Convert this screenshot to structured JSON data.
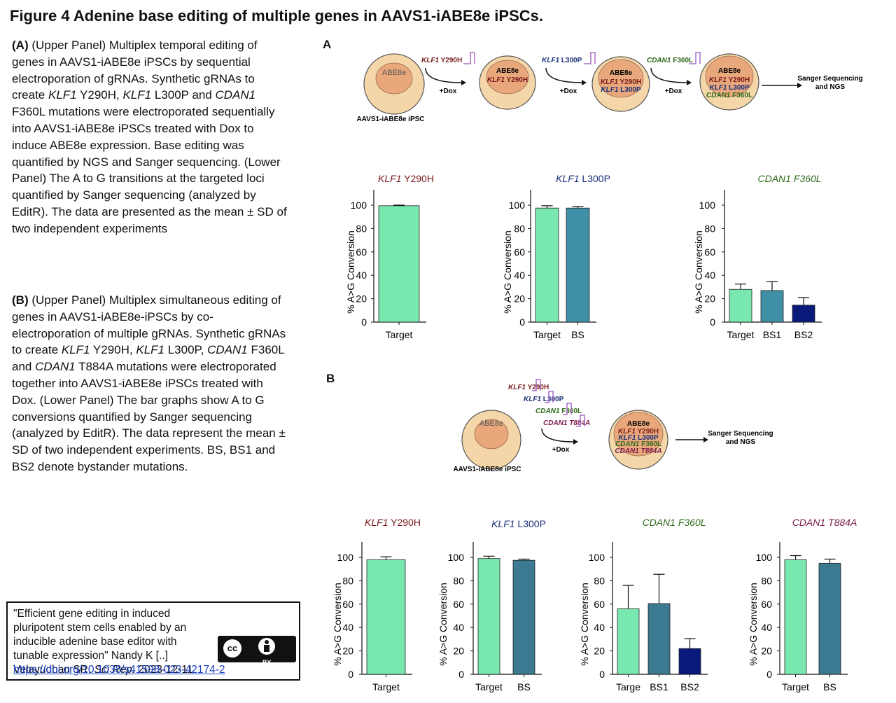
{
  "figure": {
    "title": "Figure 4 Adenine base editing of multiple genes in AAVS1-iABE8e iPSCs."
  },
  "caption_a": {
    "label": "(A)",
    "text": " (Upper Panel) Multiplex temporal editing of genes in AAVS1-iABE8e iPSCs by sequential electroporation of gRNAs. Synthetic gRNAs to create KLF1 Y290H, KLF1 L300P and CDAN1 F360L mutations were electroporated sequentially into AAVS1-iABE8e iPSCs treated with Dox to induce ABE8e expression. Base editing was quantified by NGS and Sanger sequencing. (Lower Panel) The A to G transitions at the targeted loci quantified by Sanger sequencing (analyzed by EditR). The data are presented as the mean ± SD of two independent experiments"
  },
  "caption_b": {
    "label": "(B)",
    "text": " (Upper Panel) Multiplex simultaneous editing of genes in AAVS1-iABE8e-iPSCs by co-electroporation of multiple gRNAs. Synthetic gRNAs to create KLF1 Y290H, KLF1 L300P, CDAN1 F360L and CDAN1 T884A mutations were electroporated together into AAVS1-iABE8e iPSCs treated with Dox. (Lower Panel) The bar graphs show A to G conversions quantified by Sanger sequencing (analyzed by EditR). The data represent the mean ± SD of two independent experiments. BS, BS1 and BS2 denote bystander mutations."
  },
  "citation": {
    "text": "\"Efficient gene editing in induced pluripotent stem cells enabled by an inducible adenine base editor with tunable expression\" Nandy K [..] Velayudhan SR. Sci Rep. 2023-12-11.",
    "url": "https://doi.org/10.1038/s41598-023-42174-2",
    "license_icon": "cc-by-icon",
    "license_cc": "cc",
    "license_by": "BY"
  },
  "panel_a": {
    "label": "A",
    "cell_label": "ABE8e",
    "ipsc_label": "AAVS1-iABE8e iPSC",
    "dox_label": "+Dox",
    "sanger_label": "Sanger Sequencing\nand NGS",
    "guides": [
      "KLF1 Y290H",
      "KLF1 L300P",
      "CDAN1 F360L"
    ]
  },
  "panel_b": {
    "label": "B",
    "cell_label": "ABE8e",
    "ipsc_label": "AAVS1-iABE8e iPSC",
    "dox_label": "+Dox",
    "sanger_label": "Sanger Sequencing\nand NGS",
    "guides": [
      "KLF1 Y290H",
      "KLF1 L300P",
      "CDAN1 F360L",
      "CDAN1 T884A"
    ]
  },
  "colors": {
    "target": "#78e8b0",
    "bs": "#3f8fa6",
    "bs_dark": "#3b7a91",
    "bs2": "#0a1a7a",
    "klf1_y290h": "#7a1a1a",
    "klf1_l300p": "#1a2f7a",
    "cdan1_f360l": "#2e6b1a",
    "cdan1_t884a": "#7a1a4a",
    "cell_outer": "#f5d6a8",
    "cell_inner": "#e8a87c",
    "guide_line": "#a86bc8"
  },
  "chart_data": [
    {
      "id": "a1",
      "type": "bar",
      "title_gene": "KLF1",
      "title_mut": " Y290H",
      "title_color": "#7a1a1a",
      "ylabel": "% A>G Conversion",
      "ylim": [
        0,
        100
      ],
      "yticks": [
        0,
        20,
        40,
        60,
        80,
        100
      ],
      "categories": [
        "Target"
      ],
      "values": [
        99.5
      ],
      "errors": [
        0.5
      ],
      "colors": [
        "#78e8b0"
      ]
    },
    {
      "id": "a2",
      "type": "bar",
      "title_gene": "KLF1",
      "title_mut": " L300P",
      "title_color": "#1a2f7a",
      "ylabel": "% A>G Conversion",
      "ylim": [
        0,
        100
      ],
      "yticks": [
        0,
        20,
        40,
        60,
        80,
        100
      ],
      "categories": [
        "Target",
        "BS"
      ],
      "values": [
        97.5,
        97.5
      ],
      "errors": [
        2,
        1.5
      ],
      "colors": [
        "#78e8b0",
        "#3f8fa6"
      ]
    },
    {
      "id": "a3",
      "type": "bar",
      "title_gene": "CDAN1",
      "title_mut": " F360L",
      "title_color": "#2e6b1a",
      "title_all_italic": true,
      "ylabel": "% A>G Conversion",
      "ylim": [
        0,
        100
      ],
      "yticks": [
        0,
        20,
        40,
        60,
        80,
        100
      ],
      "categories": [
        "Target",
        "BS1",
        "BS2"
      ],
      "values": [
        28,
        27,
        14.5
      ],
      "errors": [
        4.5,
        7.5,
        6.5
      ],
      "colors": [
        "#78e8b0",
        "#3f8fa6",
        "#0a1a7a"
      ]
    },
    {
      "id": "b1",
      "type": "bar",
      "title_gene": "KLF1",
      "title_mut": " Y290H",
      "title_color": "#7a1a1a",
      "ylabel": "% A>G Conversion",
      "ylim": [
        0,
        100
      ],
      "yticks": [
        0,
        20,
        40,
        60,
        80,
        100
      ],
      "categories": [
        "Target"
      ],
      "values": [
        98
      ],
      "errors": [
        2.5
      ],
      "colors": [
        "#78e8b0"
      ]
    },
    {
      "id": "b2",
      "type": "bar",
      "title_gene": "KLF1",
      "title_mut": " L300P",
      "title_color": "#1a2f7a",
      "ylabel": "% A>G Conversion",
      "ylim": [
        0,
        100
      ],
      "yticks": [
        0,
        20,
        40,
        60,
        80,
        100
      ],
      "categories": [
        "Target",
        "BS"
      ],
      "values": [
        99,
        97.5
      ],
      "errors": [
        2,
        1
      ],
      "colors": [
        "#78e8b0",
        "#3b7a91"
      ]
    },
    {
      "id": "b3",
      "type": "bar",
      "title_gene": "CDAN1",
      "title_mut": " F360L",
      "title_color": "#2e6b1a",
      "title_all_italic": true,
      "ylabel": "% A>G Conversion",
      "ylim": [
        0,
        100
      ],
      "yticks": [
        0,
        20,
        40,
        60,
        80,
        100
      ],
      "categories": [
        "Targe",
        "BS1",
        "BS2"
      ],
      "values": [
        56,
        60.5,
        22
      ],
      "errors": [
        20,
        25,
        8.5
      ],
      "colors": [
        "#78e8b0",
        "#3b7a91",
        "#0a1a7a"
      ]
    },
    {
      "id": "b4",
      "type": "bar",
      "title_gene": "CDAN1",
      "title_mut": " T884A",
      "title_color": "#7a1a4a",
      "title_all_italic": true,
      "ylabel": "% A>G Conversion",
      "ylim": [
        0,
        100
      ],
      "yticks": [
        0,
        20,
        40,
        60,
        80,
        100
      ],
      "categories": [
        "Target",
        "BS"
      ],
      "values": [
        98,
        95
      ],
      "errors": [
        3.5,
        3.5
      ],
      "colors": [
        "#78e8b0",
        "#3b7a91"
      ]
    }
  ]
}
